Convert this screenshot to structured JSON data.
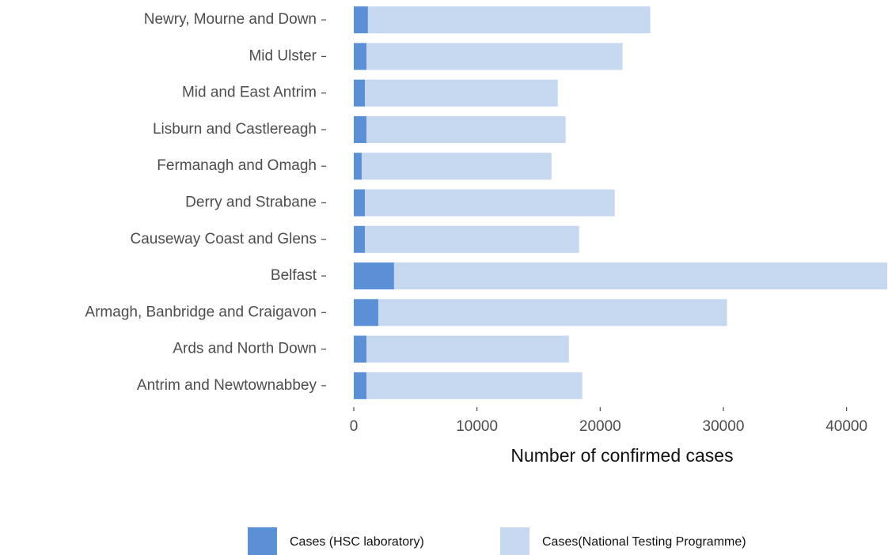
{
  "chart_data": {
    "type": "stacked-bar-horizontal",
    "x_label": "Number of confirmed cases",
    "categories": [
      "Newry, Mourne and Down",
      "Mid Ulster",
      "Mid and East Antrim",
      "Lisburn and Castlereagh",
      "Fermanagh and Omagh",
      "Derry and Strabane",
      "Causeway Coast and Glens",
      "Belfast",
      "Armagh, Banbridge and Craigavon",
      "Ards and North Down",
      "Antrim and Newtownabbey"
    ],
    "series": [
      {
        "name": "Cases (HSC laboratory)",
        "color": "#5b8fd6",
        "values": [
          1150,
          1030,
          900,
          1030,
          640,
          900,
          900,
          3270,
          1990,
          1030,
          1030
        ]
      },
      {
        "name": "Cases(National Testing Programme)",
        "color": "#c6d8f0",
        "values": [
          22920,
          20790,
          15660,
          16170,
          15410,
          20280,
          17390,
          40030,
          28310,
          16430,
          17520
        ]
      }
    ],
    "xlim": [
      0,
      43300
    ],
    "xticks": [
      0,
      10000,
      20000,
      30000,
      40000
    ],
    "grid": false
  }
}
